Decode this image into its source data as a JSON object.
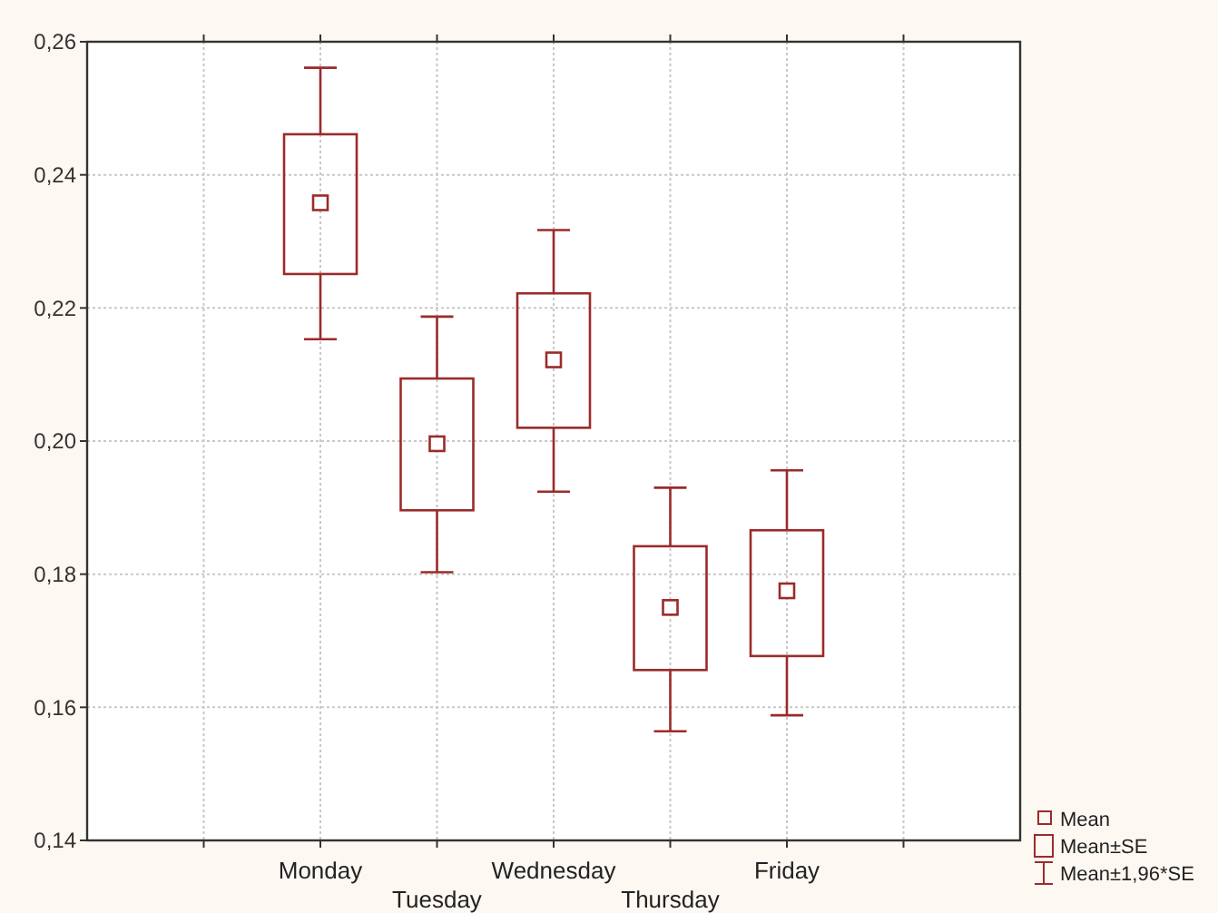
{
  "chart_data": {
    "type": "box",
    "categories": [
      null,
      "Monday",
      "Tuesday",
      "Wednesday",
      "Thursday",
      "Friday",
      null
    ],
    "boxes": [
      null,
      {
        "low": 0.2153,
        "q1": 0.2251,
        "median": 0.2358,
        "q3": 0.2461,
        "high": 0.2561
      },
      {
        "low": 0.1803,
        "q1": 0.1896,
        "median": 0.1996,
        "q3": 0.2094,
        "high": 0.2187
      },
      {
        "low": 0.1924,
        "q1": 0.202,
        "median": 0.2122,
        "q3": 0.2222,
        "high": 0.2317
      },
      {
        "low": 0.1564,
        "q1": 0.1656,
        "median": 0.175,
        "q3": 0.1842,
        "high": 0.193
      },
      {
        "low": 0.1588,
        "q1": 0.1677,
        "median": 0.1775,
        "q3": 0.1866,
        "high": 0.1956
      },
      null
    ],
    "color": "#9b2b2b",
    "ylim": [
      0.14,
      0.26
    ],
    "yticks": [
      {
        "value": 0.14,
        "label": "0,14"
      },
      {
        "value": 0.16,
        "label": "0,16"
      },
      {
        "value": 0.18,
        "label": "0,18"
      },
      {
        "value": 0.2,
        "label": "0,20"
      },
      {
        "value": 0.22,
        "label": "0,22"
      },
      {
        "value": 0.24,
        "label": "0,24"
      },
      {
        "value": 0.26,
        "label": "0,26"
      }
    ],
    "grid": true,
    "annotations": [
      "Mean",
      "Mean±SE",
      "Mean±1,96*SE"
    ]
  }
}
